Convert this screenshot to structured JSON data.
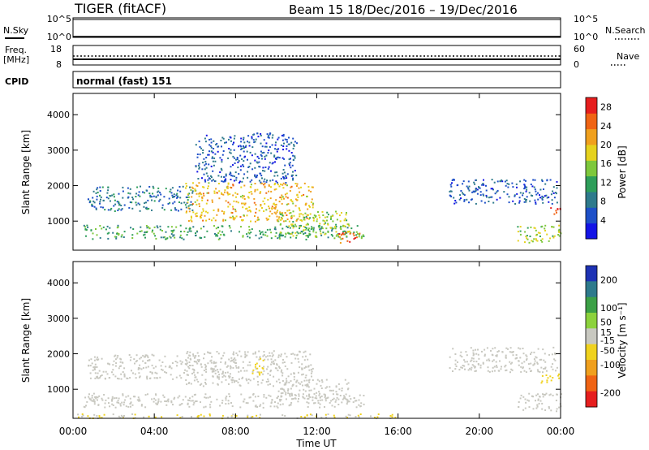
{
  "header": {
    "title": "TIGER (fitACF)",
    "beam_info": "Beam 15  18/Dec/2016 – 19/Dec/2016"
  },
  "top_panels": {
    "nsky_label": "N.Sky",
    "nsky_ticks": [
      "10^5",
      "10^0"
    ],
    "nsearch_label": "N.Search",
    "nsearch_ticks": [
      "10^5",
      "10^0"
    ],
    "freq_label": "Freq.",
    "freq_unit": "[MHz]",
    "freq_ticks": [
      "18",
      "8"
    ],
    "nave_label": "Nave",
    "nave_ticks": [
      "60",
      "0"
    ],
    "cpid_label": "CPID",
    "cpid_text": "normal (fast) 151"
  },
  "chart_data": [
    {
      "type": "heatmap",
      "title": "",
      "xlabel": "Time UT",
      "ylabel": "Slant Range [km]",
      "x_ticks": [
        "00:00",
        "04:00",
        "08:00",
        "12:00",
        "16:00",
        "20:00",
        "00:00"
      ],
      "x_range_hours": [
        0,
        24
      ],
      "y_ticks": [
        1000,
        2000,
        3000,
        4000
      ],
      "ylim": [
        180,
        4600
      ],
      "colorbar": {
        "label": "Power [dB]",
        "ticks": [
          4,
          8,
          12,
          16,
          20,
          24,
          28
        ],
        "range": [
          0,
          30
        ],
        "colors": [
          "#1414e6",
          "#1e50c8",
          "#2e7a8c",
          "#2e9e5a",
          "#7ec83c",
          "#e6d21e",
          "#f0a01e",
          "#f06414",
          "#e61e1e"
        ]
      },
      "echo_regions": [
        {
          "t0": 0.5,
          "t1": 14.3,
          "r0": 500,
          "r1": 900,
          "level": 12
        },
        {
          "t0": 0.7,
          "t1": 6.0,
          "r0": 1300,
          "r1": 2000,
          "level": 8
        },
        {
          "t0": 5.5,
          "t1": 11.8,
          "r0": 1000,
          "r1": 2100,
          "level": 20
        },
        {
          "t0": 6.0,
          "t1": 11.0,
          "r0": 2100,
          "r1": 3500,
          "level": 6
        },
        {
          "t0": 10.0,
          "t1": 13.6,
          "r0": 600,
          "r1": 1300,
          "level": 16
        },
        {
          "t0": 13.0,
          "t1": 14.2,
          "r0": 400,
          "r1": 700,
          "level": 26
        },
        {
          "t0": 18.5,
          "t1": 23.8,
          "r0": 1500,
          "r1": 2200,
          "level": 6
        },
        {
          "t0": 21.8,
          "t1": 24.0,
          "r0": 400,
          "r1": 900,
          "level": 16
        },
        {
          "t0": 23.2,
          "t1": 24.0,
          "r0": 1200,
          "r1": 1400,
          "level": 26
        }
      ]
    },
    {
      "type": "heatmap",
      "title": "",
      "xlabel": "Time UT",
      "ylabel": "Slant Range [km]",
      "x_ticks": [
        "00:00",
        "04:00",
        "08:00",
        "12:00",
        "16:00",
        "20:00",
        "00:00"
      ],
      "x_range_hours": [
        0,
        24
      ],
      "y_ticks": [
        1000,
        2000,
        3000,
        4000
      ],
      "ylim": [
        180,
        4600
      ],
      "colorbar": {
        "label": "Velocity [m s⁻¹]",
        "ticks": [
          200,
          100,
          50,
          15,
          -15,
          -50,
          -100,
          -200
        ],
        "range": [
          -250,
          250
        ],
        "colors": [
          "#1e32b4",
          "#2e7a8c",
          "#3ca046",
          "#8cd23c",
          "#c8c8c0",
          "#f0d21e",
          "#f0a01e",
          "#f06414",
          "#e61e1e"
        ]
      },
      "echo_regions": [
        {
          "t0": 0.5,
          "t1": 14.3,
          "r0": 500,
          "r1": 900,
          "level": 0
        },
        {
          "t0": 0.7,
          "t1": 6.0,
          "r0": 1300,
          "r1": 2000,
          "level": 0
        },
        {
          "t0": 5.5,
          "t1": 11.8,
          "r0": 1100,
          "r1": 2100,
          "level": 0
        },
        {
          "t0": 10.0,
          "t1": 13.6,
          "r0": 700,
          "r1": 1300,
          "level": 0
        },
        {
          "t0": 18.5,
          "t1": 23.8,
          "r0": 1500,
          "r1": 2200,
          "level": 0
        },
        {
          "t0": 21.8,
          "t1": 24.0,
          "r0": 400,
          "r1": 900,
          "level": 0
        },
        {
          "t0": 8.7,
          "t1": 9.4,
          "r0": 1400,
          "r1": 1900,
          "level": -40
        },
        {
          "t0": 23.0,
          "t1": 23.9,
          "r0": 1200,
          "r1": 1500,
          "level": -60
        },
        {
          "t0": 0.2,
          "t1": 16.0,
          "r0": 200,
          "r1": 320,
          "level": -30
        }
      ]
    }
  ]
}
